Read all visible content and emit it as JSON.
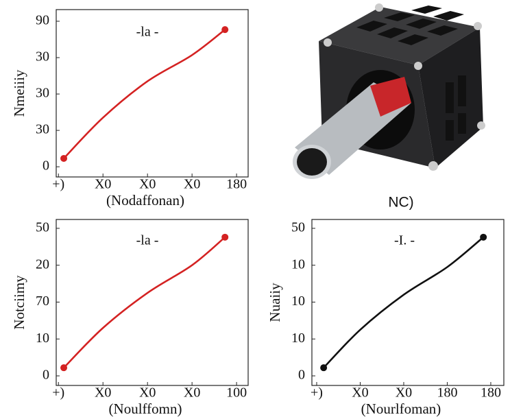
{
  "chart_data": [
    {
      "type": "line",
      "title": "-la -",
      "xlabel": "(Nodaffonan)",
      "ylabel": "Nmeiiiy",
      "xlim": [
        -0.05,
        4.26
      ],
      "ylim": [
        -0.28,
        4.32
      ],
      "xticks": [
        {
          "value": 0,
          "label": "+)"
        },
        {
          "value": 1,
          "label": "X0"
        },
        {
          "value": 2,
          "label": "X0"
        },
        {
          "value": 3,
          "label": "X0"
        },
        {
          "value": 4,
          "label": "180"
        }
      ],
      "yticks": [
        0,
        {
          "value": 1,
          "label": "30"
        },
        {
          "value": 2,
          "label": "30"
        },
        {
          "value": 3,
          "label": "30"
        },
        {
          "value": 4,
          "label": "90"
        }
      ],
      "series": [
        {
          "color": "#d42222",
          "x": [
            0.12,
            1,
            2,
            3,
            3.74
          ],
          "values": [
            0.23,
            1.35,
            2.35,
            3.07,
            3.77
          ]
        }
      ]
    },
    {
      "type": "line",
      "title": "-la -",
      "xlabel": "(Noulffomn)",
      "ylabel": "Notciimy",
      "xlim": [
        -0.05,
        4.26
      ],
      "ylim": [
        -0.26,
        4.24
      ],
      "xticks": [
        {
          "value": 0,
          "label": "+)"
        },
        {
          "value": 1,
          "label": "X0"
        },
        {
          "value": 2,
          "label": "X0"
        },
        {
          "value": 3,
          "label": "X0"
        },
        {
          "value": 4,
          "label": "100"
        }
      ],
      "yticks": [
        0,
        {
          "value": 1,
          "label": "10"
        },
        {
          "value": 2,
          "label": "70"
        },
        {
          "value": 3,
          "label": "20"
        },
        {
          "value": 4,
          "label": "50"
        }
      ],
      "series": [
        {
          "color": "#d42222",
          "x": [
            0.12,
            1,
            2,
            3,
            3.74
          ],
          "values": [
            0.22,
            1.3,
            2.25,
            3.0,
            3.76
          ]
        }
      ]
    },
    {
      "type": "line",
      "title": "-I. -",
      "xlabel": "(Nourlfoman)",
      "ylabel": "Nuaiiy",
      "xlim": [
        -0.11,
        4.3
      ],
      "ylim": [
        -0.26,
        4.24
      ],
      "xticks": [
        {
          "value": 0,
          "label": "+)"
        },
        {
          "value": 1,
          "label": "X0"
        },
        {
          "value": 2,
          "label": "X0"
        },
        {
          "value": 3,
          "label": "180"
        },
        {
          "value": 4,
          "label": "180"
        }
      ],
      "yticks": [
        0,
        {
          "value": 1,
          "label": "10"
        },
        {
          "value": 2,
          "label": "10"
        },
        {
          "value": 3,
          "label": "10"
        },
        {
          "value": 4,
          "label": "50"
        }
      ],
      "series": [
        {
          "color": "#111111",
          "x": [
            0.16,
            1,
            2,
            3,
            3.83
          ],
          "values": [
            0.22,
            1.25,
            2.2,
            2.95,
            3.76
          ]
        }
      ]
    }
  ],
  "photo": {
    "caption": "NC)"
  }
}
